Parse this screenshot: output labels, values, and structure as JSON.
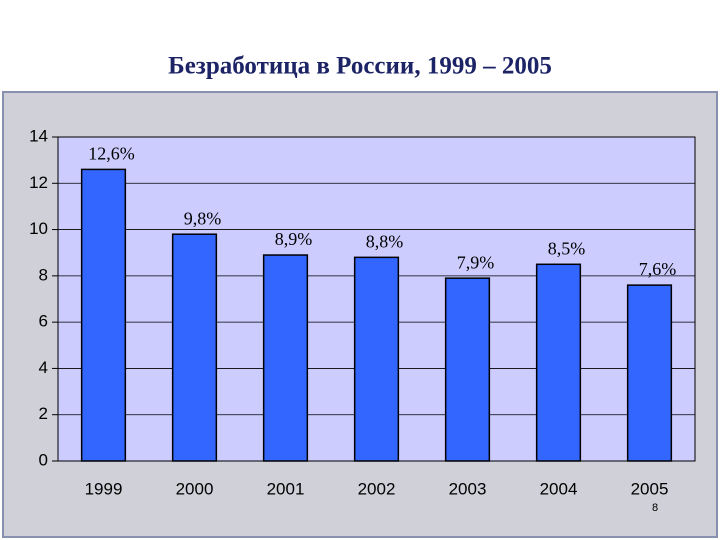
{
  "chart_data": {
    "type": "bar",
    "title": "Безработица в России, 1999 – 2005",
    "categories": [
      "1999",
      "2000",
      "2001",
      "2002",
      "2003",
      "2004",
      "2005"
    ],
    "values": [
      12.6,
      9.8,
      8.9,
      8.8,
      7.9,
      8.5,
      7.6
    ],
    "value_labels": [
      "12,6%",
      "9,8%",
      "8,9%",
      "8,8%",
      "7,9%",
      "8,5%",
      "7,6%"
    ],
    "color": "#3366ff",
    "ylim": [
      0,
      14
    ],
    "yticks": [
      0,
      2,
      4,
      6,
      8,
      10,
      12,
      14
    ],
    "grid": true
  },
  "page_number": "8"
}
